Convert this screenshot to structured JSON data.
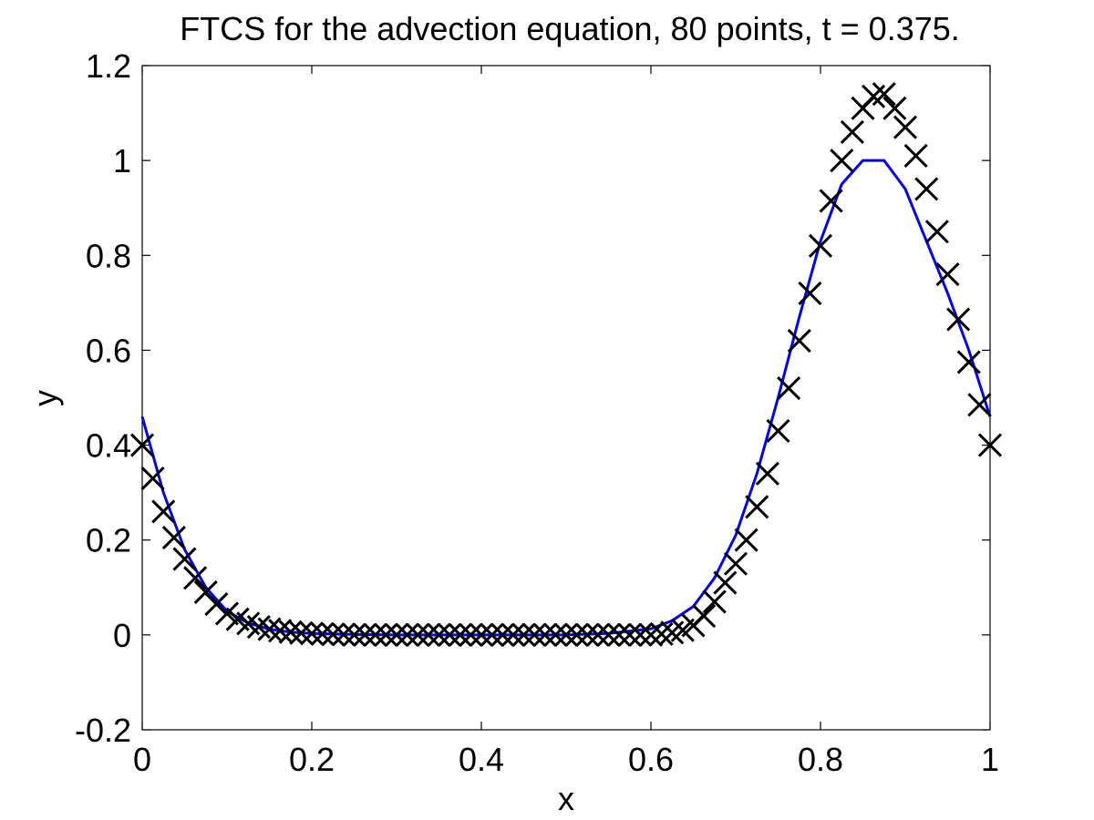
{
  "chart_data": {
    "type": "line",
    "title": "FTCS for the advection equation, 80 points, t = 0.375.",
    "xlabel": "x",
    "ylabel": "y",
    "xlim": [
      0,
      1
    ],
    "ylim": [
      -0.2,
      1.2
    ],
    "xticks": [
      "0",
      "0.2",
      "0.4",
      "0.6",
      "0.8",
      "1"
    ],
    "yticks": [
      "-0.2",
      "0",
      "0.2",
      "0.4",
      "0.6",
      "0.8",
      "1",
      "1.2"
    ],
    "grid": false,
    "legend": "none",
    "series": [
      {
        "style": "solid line",
        "color": "#0000ff",
        "x": [
          0,
          0.025,
          0.05,
          0.075,
          0.1,
          0.125,
          0.15,
          0.175,
          0.2,
          0.25,
          0.3,
          0.35,
          0.4,
          0.45,
          0.5,
          0.55,
          0.6,
          0.625,
          0.65,
          0.675,
          0.7,
          0.725,
          0.75,
          0.775,
          0.8,
          0.825,
          0.85,
          0.875,
          0.9,
          0.925,
          0.95,
          0.975,
          1.0
        ],
        "y": [
          0.46,
          0.3,
          0.18,
          0.1,
          0.05,
          0.025,
          0.012,
          0.006,
          0.003,
          0.001,
          0.0,
          0.0,
          0.0,
          0.0,
          0.0,
          0.003,
          0.013,
          0.03,
          0.06,
          0.12,
          0.21,
          0.34,
          0.5,
          0.67,
          0.83,
          0.95,
          1.0,
          1.0,
          0.94,
          0.83,
          0.72,
          0.6,
          0.46
        ]
      },
      {
        "style": "x markers",
        "color": "#000000",
        "x": [
          0.0,
          0.0125,
          0.025,
          0.0375,
          0.05,
          0.0625,
          0.075,
          0.0875,
          0.1,
          0.1125,
          0.125,
          0.1375,
          0.15,
          0.1625,
          0.175,
          0.1875,
          0.2,
          0.2125,
          0.225,
          0.2375,
          0.25,
          0.2625,
          0.275,
          0.2875,
          0.3,
          0.3125,
          0.325,
          0.3375,
          0.35,
          0.3625,
          0.375,
          0.3875,
          0.4,
          0.4125,
          0.425,
          0.4375,
          0.45,
          0.4625,
          0.475,
          0.4875,
          0.5,
          0.5125,
          0.525,
          0.5375,
          0.55,
          0.5625,
          0.575,
          0.5875,
          0.6,
          0.6125,
          0.625,
          0.6375,
          0.65,
          0.6625,
          0.675,
          0.6875,
          0.7,
          0.7125,
          0.725,
          0.7375,
          0.75,
          0.7625,
          0.775,
          0.7875,
          0.8,
          0.8125,
          0.825,
          0.8375,
          0.85,
          0.8625,
          0.875,
          0.8875,
          0.9,
          0.9125,
          0.925,
          0.9375,
          0.95,
          0.9625,
          0.975,
          0.9875,
          1.0
        ],
        "y": [
          0.4,
          0.33,
          0.26,
          0.205,
          0.16,
          0.12,
          0.09,
          0.065,
          0.045,
          0.033,
          0.024,
          0.017,
          0.012,
          0.009,
          0.006,
          0.004,
          0.003,
          0.002,
          0.001,
          0.001,
          0.0,
          0.0,
          0.0,
          0.0,
          0.0,
          0.0,
          0.0,
          0.0,
          0.0,
          0.0,
          0.0,
          0.0,
          0.0,
          0.0,
          0.0,
          0.0,
          0.0,
          0.0,
          0.0,
          0.0,
          0.0,
          0.0,
          0.0,
          0.0,
          0.0,
          0.0,
          0.0,
          0.0,
          0.0,
          0.002,
          0.005,
          0.01,
          0.02,
          0.04,
          0.07,
          0.11,
          0.15,
          0.2,
          0.27,
          0.34,
          0.43,
          0.52,
          0.62,
          0.72,
          0.82,
          0.915,
          1.0,
          1.06,
          1.11,
          1.135,
          1.14,
          1.11,
          1.07,
          1.01,
          0.94,
          0.85,
          0.76,
          0.665,
          0.575,
          0.485,
          0.4
        ]
      }
    ]
  }
}
